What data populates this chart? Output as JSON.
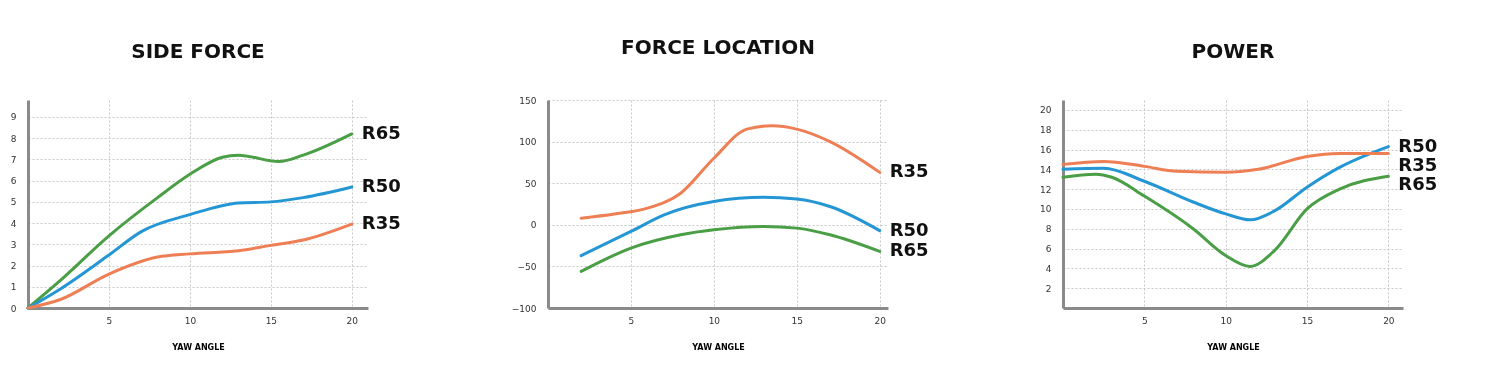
{
  "chart_data": [
    {
      "type": "line",
      "title": "SIDE FORCE",
      "xlabel": "YAW ANGLE",
      "xlim": [
        0,
        21
      ],
      "ylim": [
        0,
        9.8
      ],
      "xticks": [
        5,
        10,
        15,
        20
      ],
      "yticks": [
        0,
        1,
        2,
        3,
        4,
        5,
        6,
        7,
        8,
        9
      ],
      "grid": true,
      "legend": false,
      "marker": "none",
      "series": [
        {
          "name": "R65",
          "color": "#4a9e45",
          "x": [
            0,
            2,
            5,
            8,
            10,
            12,
            13,
            15.5,
            17,
            20
          ],
          "values": [
            0,
            1.3,
            3.4,
            5.2,
            6.3,
            7.1,
            7.2,
            6.9,
            7.2,
            8.2
          ]
        },
        {
          "name": "R50",
          "color": "#2596d4",
          "x": [
            0,
            2,
            5,
            7,
            10,
            13,
            15,
            17,
            20
          ],
          "values": [
            0,
            0.9,
            2.5,
            3.6,
            4.4,
            4.95,
            5.0,
            5.2,
            5.7
          ]
        },
        {
          "name": "R35",
          "color": "#ee7f55",
          "x": [
            0,
            2,
            5,
            8,
            10,
            13,
            15,
            17,
            20
          ],
          "values": [
            0,
            0.4,
            1.6,
            2.4,
            2.55,
            2.7,
            2.95,
            3.2,
            3.95
          ]
        }
      ]
    },
    {
      "type": "line",
      "title": "FORCE LOCATION",
      "xlabel": "YAW ANGLE",
      "xlim": [
        0,
        20.5
      ],
      "ylim": [
        -100,
        150
      ],
      "xticks": [
        5,
        10,
        15,
        20
      ],
      "yticks": [
        -100,
        -50,
        0,
        50,
        100,
        150
      ],
      "grid": true,
      "legend": false,
      "marker": "none",
      "series": [
        {
          "name": "R35",
          "color": "#ee7f55",
          "x": [
            2,
            4,
            6,
            8,
            10,
            12,
            13.5,
            15,
            17,
            20
          ],
          "values": [
            8,
            13,
            20,
            38,
            80,
            115,
            119,
            115,
            100,
            63
          ]
        },
        {
          "name": "R50",
          "color": "#2596d4",
          "x": [
            2,
            5,
            7,
            10,
            13,
            15,
            17,
            20
          ],
          "values": [
            -37,
            -8,
            12,
            28,
            33,
            31,
            22,
            -7
          ]
        },
        {
          "name": "R65",
          "color": "#4a9e45",
          "x": [
            2,
            5,
            8,
            10,
            13,
            15,
            17,
            20
          ],
          "values": [
            -56,
            -28,
            -12,
            -6,
            -2,
            -4,
            -12,
            -32
          ]
        }
      ]
    },
    {
      "type": "line",
      "title": "POWER",
      "xlabel": "YAW ANGLE",
      "xlim": [
        0,
        20.9
      ],
      "ylim": [
        0,
        21
      ],
      "xticks": [
        5,
        10,
        15,
        20
      ],
      "yticks": [
        2,
        4,
        6,
        8,
        10,
        12,
        14,
        16,
        18,
        20
      ],
      "grid": true,
      "legend": false,
      "marker": "none",
      "series": [
        {
          "name": "R50",
          "color": "#2596d4",
          "x": [
            0,
            2.5,
            5,
            8,
            10,
            11.5,
            13,
            15,
            17,
            20
          ],
          "values": [
            14,
            14.1,
            12.8,
            10.7,
            9.5,
            8.9,
            9.8,
            12.2,
            14.2,
            16.3
          ]
        },
        {
          "name": "R35",
          "color": "#ee7f55",
          "x": [
            0,
            2.5,
            5,
            7,
            10,
            12,
            15,
            17,
            20
          ],
          "values": [
            14.5,
            14.8,
            14.3,
            13.8,
            13.7,
            14,
            15.3,
            15.6,
            15.6
          ]
        },
        {
          "name": "R65",
          "color": "#4a9e45",
          "x": [
            0,
            2,
            3,
            5,
            8,
            10,
            11.5,
            13,
            15,
            17,
            20
          ],
          "values": [
            13.2,
            13.5,
            13.2,
            11.3,
            8,
            5.3,
            4.2,
            5.8,
            10,
            12,
            13.3
          ]
        }
      ]
    }
  ]
}
